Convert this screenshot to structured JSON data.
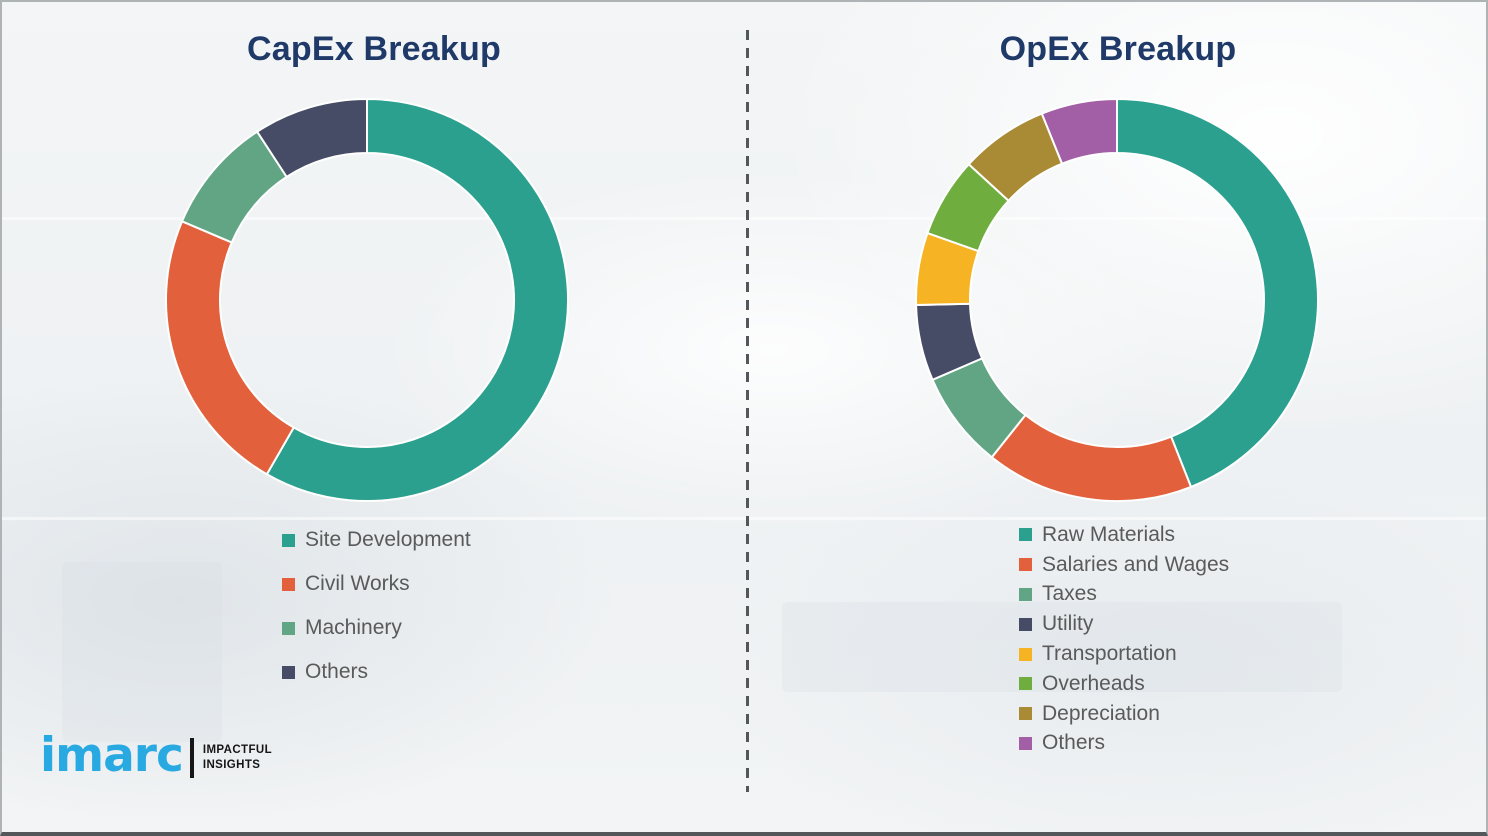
{
  "chart_data": [
    {
      "type": "pie",
      "subtype": "donut",
      "title": "CapEx Breakup",
      "direction": "clockwise",
      "start_angle_deg": 0,
      "legend_position": "bottom",
      "segments": [
        {
          "label": "Site Development",
          "value_pct": 58.3,
          "color": "#2ba08f"
        },
        {
          "label": "Civil Works",
          "value_pct": 23.1,
          "color": "#e2613c"
        },
        {
          "label": "Machinery",
          "value_pct": 9.4,
          "color": "#62a584"
        },
        {
          "label": "Others",
          "value_pct": 9.2,
          "color": "#474c66"
        }
      ]
    },
    {
      "type": "pie",
      "subtype": "donut",
      "title": "OpEx Breakup",
      "direction": "clockwise",
      "start_angle_deg": 0,
      "legend_position": "bottom",
      "segments": [
        {
          "label": "Raw Materials",
          "value_pct": 44.0,
          "color": "#2ba08f"
        },
        {
          "label": "Salaries and Wages",
          "value_pct": 16.7,
          "color": "#e2613c"
        },
        {
          "label": "Taxes",
          "value_pct": 7.8,
          "color": "#62a584"
        },
        {
          "label": "Utility",
          "value_pct": 6.1,
          "color": "#474c66"
        },
        {
          "label": "Transportation",
          "value_pct": 5.8,
          "color": "#f6b324"
        },
        {
          "label": "Overheads",
          "value_pct": 6.4,
          "color": "#6fae3e"
        },
        {
          "label": "Depreciation",
          "value_pct": 7.1,
          "color": "#a98b36"
        },
        {
          "label": "Others",
          "value_pct": 6.1,
          "color": "#a25fa5"
        }
      ]
    }
  ],
  "logo": {
    "brand": "imarc",
    "tagline_line1": "IMPACTFUL",
    "tagline_line2": "INSIGHTS",
    "brand_color": "#29a9e1"
  },
  "style": {
    "title_color": "#1f3a68",
    "legend_text_color": "#5a5a5a",
    "divider_color": "#54575a",
    "background_color": "#f2f4f5"
  }
}
